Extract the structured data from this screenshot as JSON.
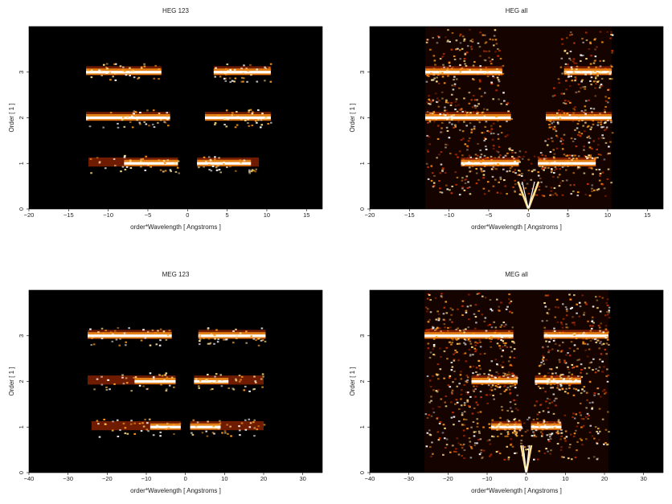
{
  "chart_data": [
    {
      "type": "heatmap",
      "title": "HEG 123",
      "xlabel": "order*Wavelength [ Angstroms ]",
      "ylabel": "Order [ 1 ]",
      "xlim": [
        -20,
        17
      ],
      "ylim": [
        0,
        4
      ],
      "xticks": [
        -20,
        -15,
        -10,
        -5,
        0,
        5,
        10,
        15
      ],
      "yticks": [
        0,
        1,
        2,
        3
      ],
      "background_color": "#000000",
      "colormap": [
        "#000000",
        "#5a0000",
        "#c83200",
        "#ff9a1e",
        "#ffe08c",
        "#ffffff"
      ],
      "bands": [
        {
          "order": 1,
          "x_range": [
            -12.5,
            -1.2
          ],
          "bright_range": [
            -8,
            -1.2
          ]
        },
        {
          "order": 1,
          "x_range": [
            1.2,
            9
          ],
          "bright_range": [
            1.2,
            8
          ]
        },
        {
          "order": 2,
          "x_range": [
            -12.8,
            -2.2
          ],
          "bright_range": [
            -12.8,
            -2.2
          ]
        },
        {
          "order": 2,
          "x_range": [
            2.2,
            10.5
          ],
          "bright_range": [
            2.2,
            10.5
          ]
        },
        {
          "order": 3,
          "x_range": [
            -12.8,
            -3.3
          ],
          "bright_range": [
            -12.8,
            -3.3
          ]
        },
        {
          "order": 3,
          "x_range": [
            3.3,
            10.5
          ],
          "bright_range": [
            3.3,
            10.5
          ]
        }
      ]
    },
    {
      "type": "heatmap",
      "title": "HEG all",
      "xlabel": "order*Wavelength [ Angstroms ]",
      "ylabel": "Order [ 1 ]",
      "xlim": [
        -20,
        17
      ],
      "ylim": [
        0,
        4
      ],
      "xticks": [
        -20,
        -15,
        -10,
        -5,
        0,
        5,
        10,
        15
      ],
      "yticks": [
        0,
        1,
        2,
        3
      ],
      "background_color": "#000000",
      "colormap": [
        "#000000",
        "#5a0000",
        "#c83200",
        "#ff9a1e",
        "#ffe08c",
        "#ffffff"
      ],
      "data_extent_x": [
        -13,
        10.5
      ],
      "bands": [
        {
          "order": 1,
          "x_range": [
            -8.5,
            -1.2
          ],
          "bright_range": [
            -8.5,
            -1.2
          ]
        },
        {
          "order": 1,
          "x_range": [
            1.2,
            8.5
          ],
          "bright_range": [
            1.2,
            8.5
          ]
        },
        {
          "order": 2,
          "x_range": [
            -13,
            -2.2
          ],
          "bright_range": [
            -13,
            -2.2
          ]
        },
        {
          "order": 2,
          "x_range": [
            2.2,
            10.5
          ],
          "bright_range": [
            2.2,
            10.5
          ]
        },
        {
          "order": 3,
          "x_range": [
            -13,
            -3.3
          ],
          "bright_range": [
            -13,
            -3.3
          ]
        },
        {
          "order": 3,
          "x_range": [
            4.5,
            10.5
          ],
          "bright_range": [
            4.5,
            10.5
          ]
        }
      ],
      "zeroth_order": {
        "x": 0,
        "y_range": [
          0,
          0.6
        ]
      }
    },
    {
      "type": "heatmap",
      "title": "MEG 123",
      "xlabel": "order*Wavelength [ Angstroms ]",
      "ylabel": "Order [ 1 ]",
      "xlim": [
        -40,
        35
      ],
      "ylim": [
        0,
        4
      ],
      "xticks": [
        -40,
        -30,
        -20,
        -10,
        0,
        10,
        20,
        30
      ],
      "yticks": [
        0,
        1,
        2,
        3
      ],
      "background_color": "#000000",
      "colormap": [
        "#000000",
        "#5a0000",
        "#c83200",
        "#ff9a1e",
        "#ffe08c",
        "#ffffff"
      ],
      "bands": [
        {
          "order": 1,
          "x_range": [
            -24,
            -1.2
          ],
          "bright_range": [
            -9,
            -1.2
          ]
        },
        {
          "order": 1,
          "x_range": [
            1.2,
            20
          ],
          "bright_range": [
            1.2,
            9
          ]
        },
        {
          "order": 2,
          "x_range": [
            -25,
            -2.5
          ],
          "bright_range": [
            -13,
            -2.5
          ]
        },
        {
          "order": 2,
          "x_range": [
            2.2,
            20
          ],
          "bright_range": [
            2.2,
            11
          ]
        },
        {
          "order": 3,
          "x_range": [
            -25,
            -3.5
          ],
          "bright_range": [
            -25,
            -3.5
          ]
        },
        {
          "order": 3,
          "x_range": [
            3.3,
            20.5
          ],
          "bright_range": [
            3.3,
            20.5
          ]
        }
      ]
    },
    {
      "type": "heatmap",
      "title": "MEG all",
      "xlabel": "order*Wavelength [ Angstroms ]",
      "ylabel": "Order [ 1 ]",
      "xlim": [
        -40,
        35
      ],
      "ylim": [
        0,
        4
      ],
      "xticks": [
        -40,
        -30,
        -20,
        -10,
        0,
        10,
        20,
        30
      ],
      "yticks": [
        0,
        1,
        2,
        3
      ],
      "background_color": "#000000",
      "colormap": [
        "#000000",
        "#5a0000",
        "#c83200",
        "#ff9a1e",
        "#ffe08c",
        "#ffffff"
      ],
      "data_extent_x": [
        -26,
        21
      ],
      "bands": [
        {
          "order": 1,
          "x_range": [
            -9,
            -1.2
          ],
          "bright_range": [
            -9,
            -1.2
          ]
        },
        {
          "order": 1,
          "x_range": [
            1.2,
            9
          ],
          "bright_range": [
            1.2,
            9
          ]
        },
        {
          "order": 2,
          "x_range": [
            -14,
            -2.2
          ],
          "bright_range": [
            -14,
            -2.2
          ]
        },
        {
          "order": 2,
          "x_range": [
            2.2,
            14
          ],
          "bright_range": [
            2.2,
            14
          ]
        },
        {
          "order": 3,
          "x_range": [
            -26,
            -3.3
          ],
          "bright_range": [
            -26,
            -3.3
          ]
        },
        {
          "order": 3,
          "x_range": [
            4.5,
            21
          ],
          "bright_range": [
            4.5,
            21
          ]
        }
      ],
      "zeroth_order": {
        "x": 0,
        "y_range": [
          0,
          0.6
        ]
      }
    }
  ]
}
